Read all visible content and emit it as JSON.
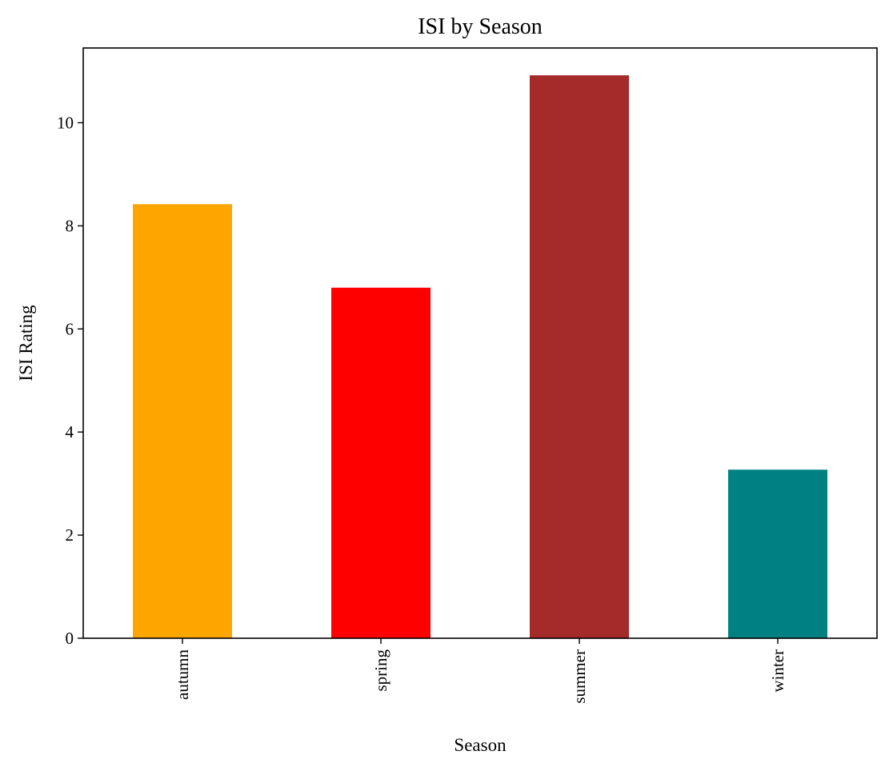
{
  "chart_data": {
    "type": "bar",
    "title": "ISI by Season",
    "xlabel": "Season",
    "ylabel": "ISI Rating",
    "categories": [
      "autumn",
      "spring",
      "summer",
      "winter"
    ],
    "values": [
      8.42,
      6.8,
      10.92,
      3.27
    ],
    "colors": [
      "#ffa500",
      "#ff0000",
      "#a52a2a",
      "#008080"
    ],
    "ylim": [
      0,
      11.45
    ],
    "yticks": [
      0,
      2,
      4,
      6,
      8,
      10
    ],
    "grid": false,
    "legend": "none"
  }
}
